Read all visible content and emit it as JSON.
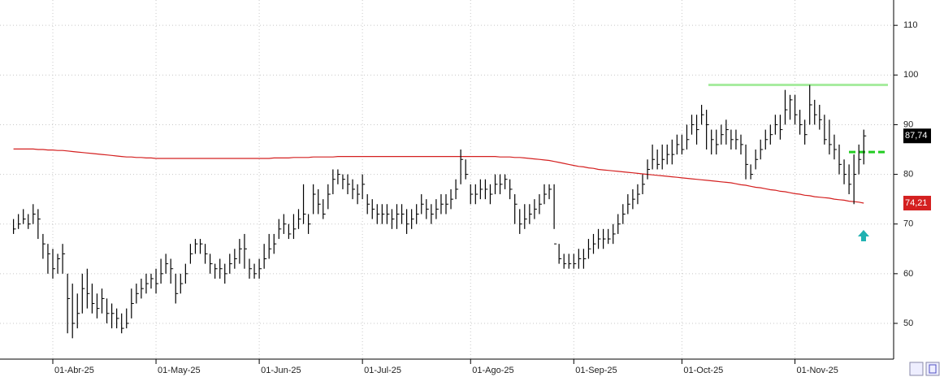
{
  "chart_data": {
    "type": "ohlc",
    "categories": [
      null,
      null,
      null,
      null,
      null,
      null,
      null,
      null,
      "01-Abr-25",
      null,
      null,
      null,
      null,
      null,
      null,
      null,
      null,
      null,
      null,
      null,
      null,
      null,
      null,
      null,
      null,
      null,
      null,
      null,
      null,
      "01-May-25",
      null,
      null,
      null,
      null,
      null,
      null,
      null,
      null,
      null,
      null,
      null,
      null,
      null,
      null,
      null,
      null,
      null,
      null,
      null,
      null,
      "01-Jun-25",
      null,
      null,
      null,
      null,
      null,
      null,
      null,
      null,
      null,
      null,
      null,
      null,
      null,
      null,
      null,
      null,
      null,
      null,
      null,
      null,
      "01-Jul-25",
      null,
      null,
      null,
      null,
      null,
      null,
      null,
      null,
      null,
      null,
      null,
      null,
      null,
      null,
      null,
      null,
      null,
      null,
      null,
      null,
      null,
      "01-Ago-25",
      null,
      null,
      null,
      null,
      null,
      null,
      null,
      null,
      null,
      null,
      null,
      null,
      null,
      null,
      null,
      null,
      null,
      null,
      null,
      null,
      "01-Sep-25",
      null,
      null,
      null,
      null,
      null,
      null,
      null,
      null,
      null,
      null,
      null,
      null,
      null,
      null,
      null,
      null,
      null,
      null,
      null,
      null,
      null,
      "01-Oct-25",
      null,
      null,
      null,
      null,
      null,
      null,
      null,
      null,
      null,
      null,
      null,
      null,
      null,
      null,
      null,
      null,
      null,
      null,
      null,
      null,
      null,
      null,
      "01-Nov-25",
      null,
      null,
      null,
      null,
      null,
      null,
      null,
      null,
      null,
      null,
      null,
      null,
      null,
      null
    ],
    "high": [
      71,
      72,
      73,
      72,
      74,
      73,
      68,
      66,
      65,
      64,
      66,
      60,
      58,
      56,
      60,
      61,
      58,
      56,
      57,
      55,
      54,
      53,
      52,
      53,
      57,
      58,
      59,
      60,
      60,
      61,
      63,
      64,
      63,
      60,
      60,
      62,
      66,
      67,
      67,
      66,
      64,
      62,
      63,
      62,
      64,
      65,
      67,
      68,
      63,
      62,
      63,
      66,
      68,
      68,
      71,
      72,
      70,
      72,
      73,
      78,
      72,
      78,
      77,
      75,
      78,
      81,
      81,
      80,
      80,
      79,
      78,
      80,
      76,
      75,
      74,
      74,
      74,
      73,
      74,
      74,
      73,
      73,
      74,
      76,
      75,
      74,
      75,
      76,
      76,
      77,
      79,
      85,
      83,
      78,
      78,
      79,
      79,
      78,
      80,
      80,
      80,
      79,
      76,
      73,
      74,
      74,
      75,
      76,
      78,
      78,
      78,
      66,
      64,
      64,
      64,
      65,
      65,
      67,
      68,
      69,
      69,
      69,
      70,
      72,
      74,
      76,
      77,
      78,
      80,
      83,
      86,
      85,
      86,
      86,
      87,
      88,
      88,
      90,
      92,
      92,
      94,
      93,
      89,
      89,
      90,
      91,
      89,
      89,
      88,
      86,
      82,
      85,
      87,
      89,
      90,
      92,
      92,
      97,
      96,
      96,
      93,
      91,
      98,
      95,
      94,
      92,
      91,
      88,
      86,
      83,
      82,
      84,
      86,
      89
    ],
    "low": [
      68,
      69,
      70,
      69,
      70,
      67,
      63,
      60,
      59,
      60,
      60,
      48,
      47,
      49,
      52,
      53,
      52,
      51,
      52,
      50,
      49,
      49,
      48,
      49,
      51,
      54,
      55,
      56,
      57,
      56,
      58,
      60,
      58,
      54,
      56,
      58,
      62,
      64,
      64,
      62,
      60,
      59,
      59,
      58,
      60,
      61,
      62,
      61,
      59,
      59,
      59,
      61,
      63,
      64,
      67,
      68,
      67,
      67,
      69,
      70,
      68,
      72,
      72,
      71,
      73,
      76,
      78,
      77,
      76,
      75,
      74,
      75,
      72,
      71,
      70,
      70,
      70,
      69,
      69,
      70,
      68,
      69,
      70,
      72,
      71,
      70,
      71,
      72,
      72,
      73,
      75,
      78,
      79,
      74,
      74,
      75,
      75,
      74,
      76,
      76,
      77,
      75,
      70,
      68,
      69,
      70,
      71,
      72,
      74,
      75,
      69,
      62,
      61,
      61,
      61,
      61,
      61,
      63,
      64,
      65,
      65,
      66,
      66,
      68,
      70,
      72,
      73,
      74,
      76,
      79,
      81,
      81,
      81,
      82,
      82,
      84,
      84,
      85,
      88,
      86,
      90,
      85,
      84,
      84,
      86,
      86,
      85,
      85,
      84,
      79,
      79,
      81,
      83,
      85,
      86,
      88,
      87,
      90,
      91,
      90,
      88,
      86,
      90,
      90,
      89,
      86,
      84,
      83,
      80,
      78,
      76,
      74,
      80,
      82
    ],
    "close": [
      69,
      70,
      71,
      70,
      72,
      71,
      66,
      64,
      61,
      63,
      64,
      55,
      50,
      52,
      57,
      56,
      54,
      53,
      55,
      52,
      52,
      51,
      49,
      50,
      54,
      56,
      57,
      58,
      59,
      58,
      60,
      62,
      61,
      56,
      58,
      60,
      64,
      66,
      66,
      64,
      62,
      61,
      61,
      60,
      62,
      63,
      65,
      65,
      61,
      60,
      61,
      63,
      65,
      66,
      69,
      70,
      68,
      69,
      71,
      72,
      70,
      76,
      74,
      72,
      76,
      79,
      80,
      79,
      78,
      77,
      76,
      78,
      74,
      73,
      72,
      72,
      72,
      71,
      72,
      72,
      70,
      71,
      72,
      74,
      73,
      72,
      73,
      74,
      74,
      75,
      77,
      83,
      80,
      76,
      76,
      77,
      77,
      76,
      78,
      78,
      79,
      77,
      74,
      70,
      71,
      72,
      73,
      74,
      76,
      77,
      66,
      63,
      62,
      62,
      62,
      63,
      63,
      65,
      66,
      67,
      67,
      67,
      68,
      70,
      72,
      74,
      75,
      76,
      78,
      81,
      83,
      82,
      83,
      84,
      84,
      86,
      85,
      87,
      90,
      89,
      92,
      90,
      87,
      86,
      88,
      89,
      87,
      87,
      86,
      82,
      80,
      83,
      85,
      87,
      88,
      90,
      89,
      93,
      95,
      92,
      90,
      88,
      94,
      92,
      91,
      87,
      86,
      85,
      82,
      80,
      78,
      80,
      83,
      87.74
    ],
    "bar_color": "#000000",
    "ma": {
      "color": "#d42020",
      "values": [
        85.1,
        85.1,
        85.1,
        85.1,
        85.1,
        85.0,
        85.0,
        84.9,
        84.9,
        84.8,
        84.8,
        84.7,
        84.6,
        84.5,
        84.4,
        84.3,
        84.2,
        84.1,
        84.0,
        83.9,
        83.8,
        83.7,
        83.6,
        83.5,
        83.5,
        83.4,
        83.4,
        83.3,
        83.3,
        83.2,
        83.2,
        83.2,
        83.2,
        83.2,
        83.2,
        83.2,
        83.2,
        83.2,
        83.2,
        83.2,
        83.2,
        83.2,
        83.2,
        83.2,
        83.2,
        83.2,
        83.2,
        83.2,
        83.2,
        83.2,
        83.2,
        83.2,
        83.2,
        83.3,
        83.3,
        83.3,
        83.3,
        83.4,
        83.4,
        83.4,
        83.4,
        83.5,
        83.5,
        83.5,
        83.5,
        83.5,
        83.6,
        83.6,
        83.6,
        83.6,
        83.6,
        83.6,
        83.6,
        83.6,
        83.6,
        83.6,
        83.6,
        83.6,
        83.6,
        83.6,
        83.6,
        83.6,
        83.6,
        83.6,
        83.6,
        83.6,
        83.6,
        83.6,
        83.6,
        83.6,
        83.6,
        83.6,
        83.6,
        83.6,
        83.6,
        83.6,
        83.6,
        83.6,
        83.6,
        83.5,
        83.5,
        83.5,
        83.4,
        83.4,
        83.3,
        83.2,
        83.1,
        83.0,
        82.9,
        82.8,
        82.6,
        82.4,
        82.2,
        82.0,
        81.8,
        81.6,
        81.5,
        81.3,
        81.2,
        81.0,
        80.9,
        80.8,
        80.7,
        80.6,
        80.5,
        80.4,
        80.3,
        80.2,
        80.1,
        80.0,
        79.9,
        79.8,
        79.7,
        79.6,
        79.5,
        79.4,
        79.3,
        79.2,
        79.1,
        79.0,
        78.9,
        78.8,
        78.7,
        78.6,
        78.5,
        78.4,
        78.3,
        78.1,
        77.9,
        77.8,
        77.6,
        77.4,
        77.3,
        77.1,
        76.9,
        76.8,
        76.6,
        76.5,
        76.3,
        76.1,
        76.0,
        75.8,
        75.7,
        75.5,
        75.4,
        75.3,
        75.2,
        75.0,
        74.9,
        74.8,
        74.6,
        74.5,
        74.4,
        74.21
      ]
    },
    "last_label": "87,74",
    "ma_label": "74,21",
    "levels": [
      {
        "value": 98,
        "color": "#a8eca0",
        "style": "solid"
      },
      {
        "value": 84.5,
        "color": "#22cc22",
        "style": "dashed"
      }
    ],
    "ylim": [
      42.8,
      115.1
    ],
    "yticks": [
      50,
      60,
      70,
      80,
      90,
      100,
      110
    ],
    "grid": true
  }
}
